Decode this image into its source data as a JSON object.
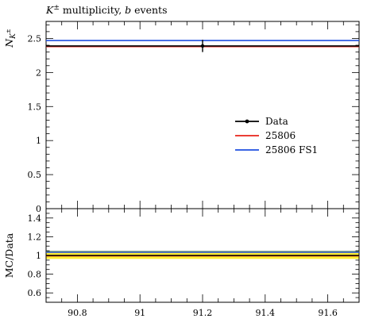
{
  "chart_data": [
    {
      "type": "line",
      "title_parts": {
        "sym": "K",
        "sup": "±",
        "rest": " multiplicity, ",
        "ital": "b",
        "tail": " events"
      },
      "ylabel_parts": {
        "sym": "N",
        "sub": "K",
        "subsup": "±"
      },
      "xlim": [
        90.7,
        91.7
      ],
      "ylim": [
        0,
        2.75
      ],
      "x_ticks": [
        "90.8",
        "91",
        "91.2",
        "91.4",
        "91.6"
      ],
      "y_ticks": [
        "0",
        "0.5",
        "1",
        "1.5",
        "2",
        "2.5"
      ],
      "series": [
        {
          "name": "Data",
          "color": "#000000",
          "x": [
            91.2
          ],
          "y": [
            2.39
          ],
          "yerr": 0.09
        },
        {
          "name": "25806",
          "color": "#e8231a",
          "y": 2.38
        },
        {
          "name": "25806 FS1",
          "color": "#1f4fe0",
          "y": 2.47
        }
      ],
      "legend_position": "center-right"
    },
    {
      "type": "line",
      "ylabel": "MC/Data",
      "xlim": [
        90.7,
        91.7
      ],
      "ylim": [
        0.5,
        1.5
      ],
      "x_ticks": [
        "90.8",
        "91",
        "91.2",
        "91.4",
        "91.6"
      ],
      "y_ticks": [
        "0.6",
        "0.8",
        "1",
        "1.2",
        "1.4"
      ],
      "band": {
        "low": 0.963,
        "high": 1.037,
        "color": "#ffee33"
      },
      "series": [
        {
          "name": "25806",
          "color": "#e8231a",
          "y": 0.996
        },
        {
          "name": "25806 FS1",
          "color": "#1f4fe0",
          "y": 1.034
        }
      ],
      "reference": 1.0
    }
  ]
}
